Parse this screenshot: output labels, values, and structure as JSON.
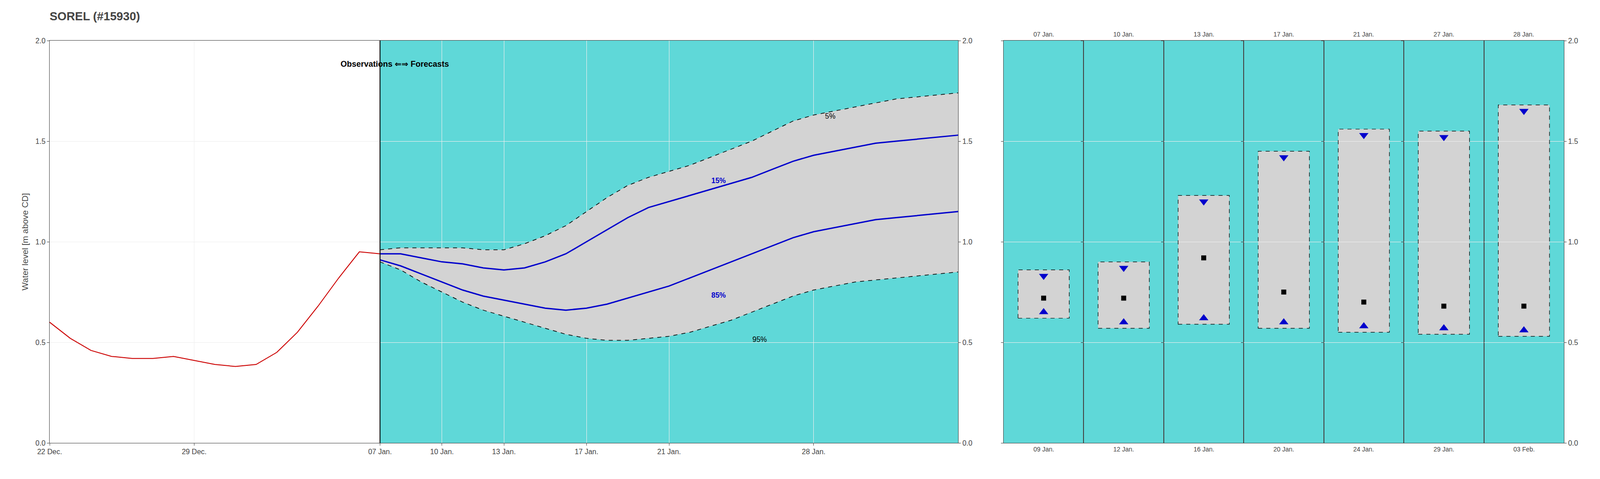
{
  "chart_data": {
    "type": "line",
    "title": "SOREL (#15930)",
    "y_label": "Water level [m above CD]",
    "xlim": [
      0,
      44
    ],
    "xticks": [
      {
        "value": 0,
        "label": "22 Dec."
      },
      {
        "value": 7,
        "label": "29 Dec."
      },
      {
        "value": 16,
        "label": "07 Jan."
      },
      {
        "value": 19,
        "label": "10 Jan."
      },
      {
        "value": 22,
        "label": "13 Jan."
      },
      {
        "value": 26,
        "label": "17 Jan."
      },
      {
        "value": 30,
        "label": "21 Jan."
      },
      {
        "value": 37,
        "label": "28 Jan."
      }
    ],
    "ylim": [
      0.0,
      2.0
    ],
    "yticks": [
      {
        "value": 0.0,
        "label": "0.0"
      },
      {
        "value": 0.5,
        "label": "0.5"
      },
      {
        "value": 1.0,
        "label": "1.0"
      },
      {
        "value": 1.5,
        "label": "1.5"
      },
      {
        "value": 2.0,
        "label": "2.0"
      }
    ],
    "grid": true,
    "annotations": [
      {
        "text": "Observations ⇐⇒ Forecasts"
      }
    ],
    "forecast_start": 16,
    "forecast_color": "#5fd8d8",
    "band": {
      "between": [
        "5%",
        "95%"
      ],
      "color": "#d3d3d3"
    },
    "series": [
      {
        "name": "5%",
        "x": [
          16,
          17,
          18,
          19,
          20,
          21,
          22,
          23,
          24,
          25,
          26,
          27,
          28,
          29,
          30,
          31,
          32,
          33,
          34,
          35,
          36,
          37,
          38,
          39,
          40,
          41,
          42,
          43,
          44
        ],
        "values": [
          0.96,
          0.97,
          0.97,
          0.97,
          0.97,
          0.96,
          0.96,
          0.99,
          1.03,
          1.08,
          1.15,
          1.22,
          1.28,
          1.32,
          1.35,
          1.38,
          1.42,
          1.46,
          1.5,
          1.55,
          1.6,
          1.63,
          1.65,
          1.67,
          1.69,
          1.71,
          1.72,
          1.73,
          1.74
        ],
        "color": "black",
        "line_style": "dashed",
        "label_x": 37.5,
        "label_y": 1.6
      },
      {
        "name": "95%",
        "x": [
          16,
          17,
          18,
          19,
          20,
          21,
          22,
          23,
          24,
          25,
          26,
          27,
          28,
          29,
          30,
          31,
          32,
          33,
          34,
          35,
          36,
          37,
          38,
          39,
          40,
          41,
          42,
          43,
          44
        ],
        "values": [
          0.9,
          0.86,
          0.8,
          0.75,
          0.7,
          0.66,
          0.63,
          0.6,
          0.57,
          0.54,
          0.52,
          0.51,
          0.51,
          0.52,
          0.53,
          0.55,
          0.58,
          0.61,
          0.65,
          0.69,
          0.73,
          0.76,
          0.78,
          0.8,
          0.81,
          0.82,
          0.83,
          0.84,
          0.85
        ],
        "color": "black",
        "line_style": "dashed",
        "label_x": 34,
        "label_y": 0.49
      },
      {
        "name": "15%",
        "x": [
          16,
          17,
          18,
          19,
          20,
          21,
          22,
          23,
          24,
          25,
          26,
          27,
          28,
          29,
          30,
          31,
          32,
          33,
          34,
          35,
          36,
          37,
          38,
          39,
          40,
          41,
          42,
          43,
          44
        ],
        "values": [
          0.94,
          0.94,
          0.92,
          0.9,
          0.89,
          0.87,
          0.86,
          0.87,
          0.9,
          0.94,
          1.0,
          1.06,
          1.12,
          1.17,
          1.2,
          1.23,
          1.26,
          1.29,
          1.32,
          1.36,
          1.4,
          1.43,
          1.45,
          1.47,
          1.49,
          1.5,
          1.51,
          1.52,
          1.53
        ],
        "color": "#0000cc",
        "line_style": "solid",
        "label_x": 32,
        "label_y": 1.28
      },
      {
        "name": "85%",
        "x": [
          16,
          17,
          18,
          19,
          20,
          21,
          22,
          23,
          24,
          25,
          26,
          27,
          28,
          29,
          30,
          31,
          32,
          33,
          34,
          35,
          36,
          37,
          38,
          39,
          40,
          41,
          42,
          43,
          44
        ],
        "values": [
          0.91,
          0.88,
          0.84,
          0.8,
          0.76,
          0.73,
          0.71,
          0.69,
          0.67,
          0.66,
          0.67,
          0.69,
          0.72,
          0.75,
          0.78,
          0.82,
          0.86,
          0.9,
          0.94,
          0.98,
          1.02,
          1.05,
          1.07,
          1.09,
          1.11,
          1.12,
          1.13,
          1.14,
          1.15
        ],
        "color": "#0000cc",
        "line_style": "solid",
        "label_x": 32,
        "label_y": 0.71
      },
      {
        "x": [
          0,
          1,
          2,
          3,
          4,
          5,
          6,
          7,
          8,
          9,
          10,
          11,
          12,
          13,
          14,
          15,
          16
        ],
        "values": [
          0.6,
          0.52,
          0.46,
          0.43,
          0.42,
          0.42,
          0.43,
          0.41,
          0.39,
          0.38,
          0.39,
          0.45,
          0.55,
          0.68,
          0.82,
          0.95,
          0.94
        ],
        "color": "#cc0000",
        "line_style": "solid"
      }
    ],
    "triangle_color": "#0000cc",
    "square_color": "black",
    "panels": [
      {
        "top_label": "07 Jan.",
        "bottom_label": "09 Jan.",
        "down_triangle": 0.83,
        "square": 0.72,
        "up_triangle": 0.65,
        "box": [
          0.62,
          0.86
        ]
      },
      {
        "top_label": "10 Jan.",
        "bottom_label": "12 Jan.",
        "down_triangle": 0.87,
        "square": 0.72,
        "up_triangle": 0.6,
        "box": [
          0.57,
          0.9
        ]
      },
      {
        "top_label": "13 Jan.",
        "bottom_label": "16 Jan.",
        "down_triangle": 1.2,
        "square": 0.92,
        "up_triangle": 0.62,
        "box": [
          0.59,
          1.23
        ]
      },
      {
        "top_label": "17 Jan.",
        "bottom_label": "20 Jan.",
        "down_triangle": 1.42,
        "square": 0.75,
        "up_triangle": 0.6,
        "box": [
          0.57,
          1.45
        ]
      },
      {
        "top_label": "21 Jan.",
        "bottom_label": "24 Jan.",
        "down_triangle": 1.53,
        "square": 0.7,
        "up_triangle": 0.58,
        "box": [
          0.55,
          1.56
        ]
      },
      {
        "top_label": "27 Jan.",
        "bottom_label": "29 Jan.",
        "down_triangle": 1.52,
        "square": 0.68,
        "up_triangle": 0.57,
        "box": [
          0.54,
          1.55
        ]
      },
      {
        "top_label": "28 Jan.",
        "bottom_label": "03 Feb.",
        "down_triangle": 1.65,
        "square": 0.68,
        "up_triangle": 0.56,
        "box": [
          0.53,
          1.68
        ]
      }
    ]
  }
}
